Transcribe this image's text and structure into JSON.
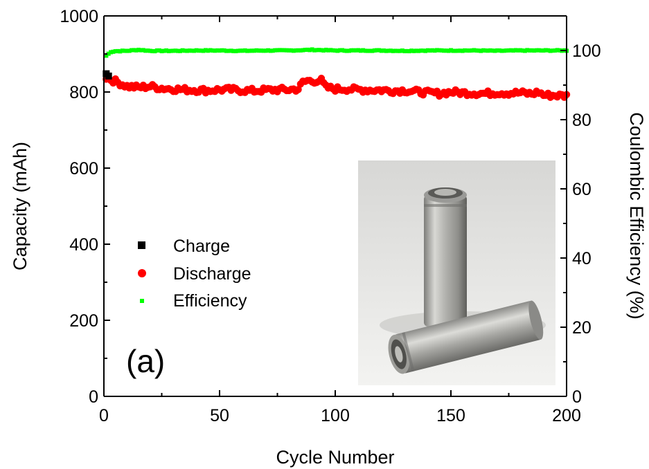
{
  "chart_data": {
    "type": "scatter",
    "title": "",
    "panel_label": "(a)",
    "xlabel": "Cycle Number",
    "ylabel": "Capacity (mAh)",
    "y2label": "Coulombic Efficiency (%)",
    "xlim": [
      0,
      200
    ],
    "ylim": [
      0,
      1000
    ],
    "y2lim": [
      0,
      110
    ],
    "x_ticks": [
      "0",
      "50",
      "100",
      "150",
      "200"
    ],
    "y_ticks": [
      "0",
      "200",
      "400",
      "600",
      "800",
      "1000"
    ],
    "y2_ticks": [
      "0",
      "20",
      "40",
      "60",
      "80",
      "100"
    ],
    "grid": false,
    "legend_position": "middle-left",
    "series": [
      {
        "name": "Charge",
        "axis": "left",
        "marker": "square",
        "color": "#000000",
        "x": [
          1,
          2
        ],
        "y": [
          848,
          842
        ]
      },
      {
        "name": "Discharge",
        "axis": "left",
        "marker": "circle",
        "color": "#ff0000",
        "x": [
          1,
          5,
          10,
          15,
          20,
          25,
          30,
          35,
          40,
          45,
          50,
          55,
          60,
          65,
          70,
          75,
          80,
          84,
          86,
          88,
          90,
          92,
          94,
          96,
          100,
          105,
          110,
          115,
          120,
          125,
          130,
          135,
          140,
          145,
          150,
          155,
          160,
          165,
          170,
          175,
          180,
          185,
          188,
          190,
          195,
          200
        ],
        "y": [
          838,
          828,
          815,
          812,
          815,
          810,
          808,
          806,
          805,
          804,
          806,
          806,
          804,
          803,
          805,
          806,
          806,
          808,
          825,
          830,
          828,
          830,
          830,
          812,
          808,
          808,
          806,
          805,
          805,
          803,
          804,
          801,
          798,
          796,
          800,
          798,
          797,
          796,
          798,
          797,
          798,
          795,
          800,
          792,
          791,
          790
        ]
      },
      {
        "name": "Efficiency",
        "axis": "right",
        "marker": "square",
        "color": "#00ff00",
        "x": [
          1,
          3,
          5,
          10,
          15,
          20,
          30,
          40,
          50,
          60,
          70,
          80,
          90,
          100,
          110,
          120,
          130,
          140,
          150,
          160,
          170,
          180,
          190,
          200
        ],
        "y": [
          98.5,
          99.6,
          99.8,
          99.9,
          100.2,
          99.9,
          99.9,
          100.0,
          100.0,
          99.9,
          100.0,
          100.0,
          100.2,
          100.0,
          100.0,
          100.0,
          99.9,
          100.0,
          100.0,
          100.0,
          99.9,
          100.0,
          100.0,
          100.0
        ]
      }
    ],
    "inset_image": "two cylindrical metal battery cells"
  }
}
